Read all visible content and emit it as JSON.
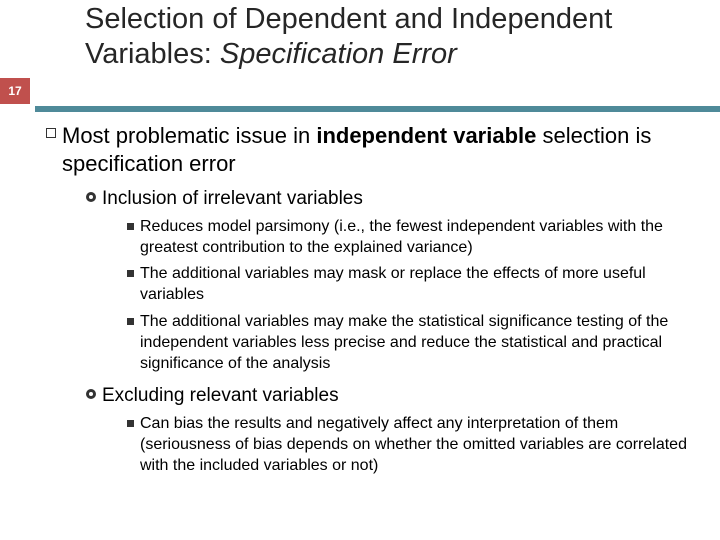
{
  "page_number": "17",
  "title_plain": "Selection of Dependent and Independent Variables: ",
  "title_italic": "Specification Error",
  "lvl1_pre": "Most problematic issue in ",
  "lvl1_bold": "independent variable",
  "lvl1_post": " selection is specification error",
  "lvl2_a": "Inclusion of irrelevant variables",
  "lvl3_a1": "Reduces model parsimony (i.e., the fewest independent variables with the greatest contribution to the explained variance)",
  "lvl3_a2": "The additional variables may mask or replace the effects of more useful variables",
  "lvl3_a3": "The additional variables may make the statistical significance testing of the independent variables less precise and reduce the statistical and practical significance of the analysis",
  "lvl2_b": "Excluding relevant variables",
  "lvl3_b1": "Can bias the results and negatively affect any interpretation of them (seriousness of bias depends on whether the omitted variables are correlated with the included variables or not)",
  "colors": {
    "badge_bg": "#c0504d",
    "band_border": "#4f8a99",
    "text": "#000000",
    "title": "#262626",
    "bullet": "#333333",
    "background": "#ffffff"
  }
}
